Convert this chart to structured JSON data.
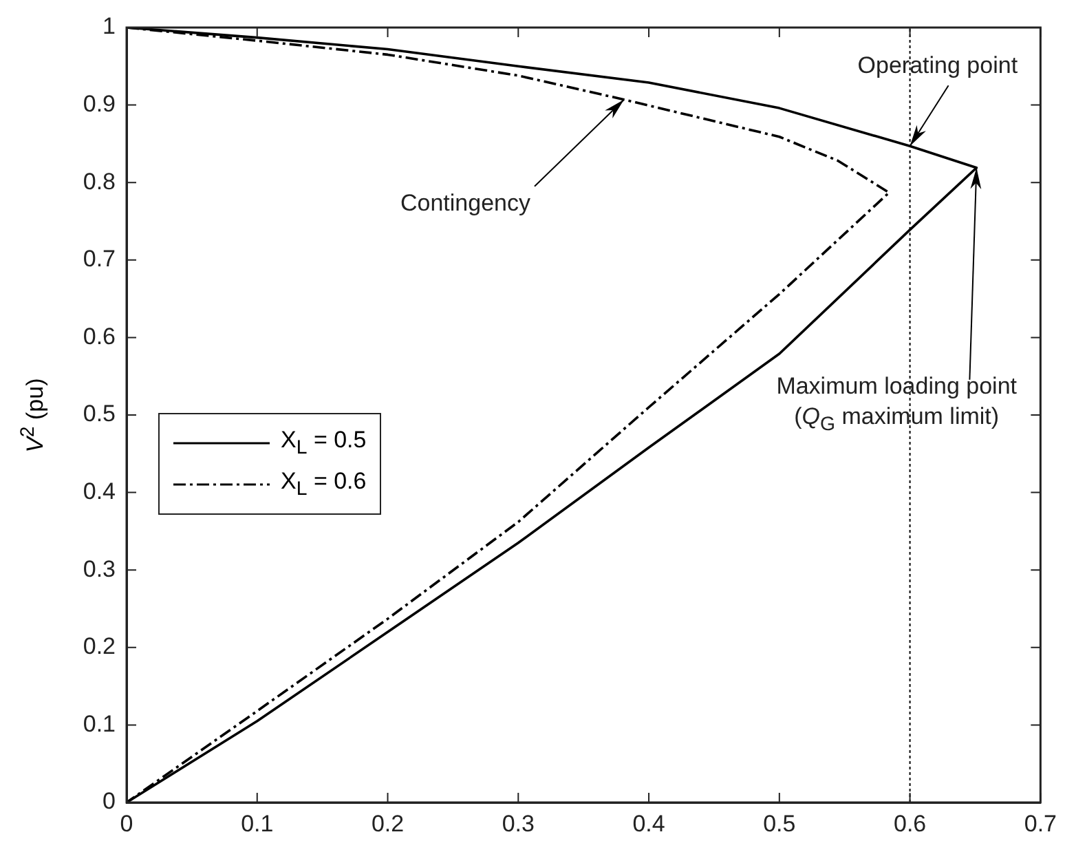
{
  "chart_data": {
    "type": "line",
    "ylabel": "V$^{2}$ (pu)",
    "xlim": [
      0,
      0.7
    ],
    "xticks": [
      0,
      0.1,
      0.2,
      0.3,
      0.4,
      0.5,
      0.6,
      0.7
    ],
    "ylim": [
      0,
      1
    ],
    "yticks": [
      0,
      0.1,
      0.2,
      0.3,
      0.4,
      0.5,
      0.6,
      0.7,
      0.8,
      0.9,
      1
    ],
    "grid": false,
    "legend": "left",
    "marker": "none",
    "series": [
      {
        "name": "X$_{L}$ = 0.5",
        "color": "#000000",
        "line_style": "solid",
        "x": [
          0,
          0.1,
          0.2,
          0.3,
          0.4,
          0.5,
          0.6,
          0.651,
          0.6,
          0.5,
          0.4,
          0.3,
          0.2,
          0.1,
          0
        ],
        "values": [
          1,
          0.987,
          0.972,
          0.95,
          0.929,
          0.896,
          0.847,
          0.819,
          0.739,
          0.579,
          0.458,
          0.335,
          0.22,
          0.105,
          0
        ]
      },
      {
        "name": "X$_{L}$ = 0.6",
        "color": "#000000",
        "line_style": "dashdot",
        "x": [
          0,
          0.1,
          0.2,
          0.3,
          0.381,
          0.5,
          0.545,
          0.584,
          0.5,
          0.4,
          0.3,
          0.2,
          0.1,
          0
        ],
        "values": [
          1,
          0.983,
          0.965,
          0.938,
          0.907,
          0.859,
          0.828,
          0.787,
          0.656,
          0.51,
          0.362,
          0.237,
          0.118,
          0
        ]
      }
    ],
    "ref_lines": [
      {
        "axis": "x",
        "value": 0.6,
        "color": "#000000",
        "line_style": "dotted"
      }
    ],
    "annotations": [
      {
        "text": "Operating point",
        "x": 0.6,
        "y": 0.847
      },
      {
        "text": "Contingency",
        "x": 0.381,
        "y": 0.907
      },
      {
        "text": "Maximum loading point\n(Q$_{G}$ maximum limit)",
        "x": 0.651,
        "y": 0.819
      }
    ]
  }
}
